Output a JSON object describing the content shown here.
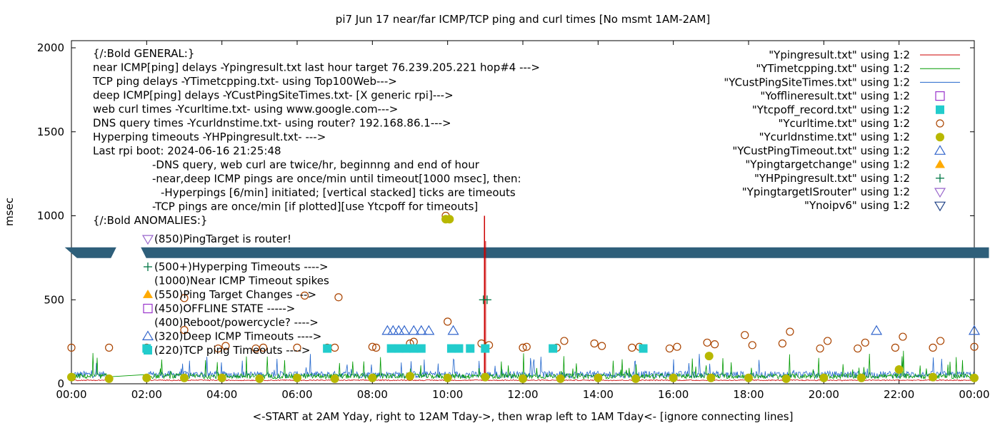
{
  "chart_data": {
    "type": "line",
    "title": "pi7 Jun 17  near/far ICMP/TCP ping and curl times [No msmt 1AM-2AM]",
    "xlabel": "<-START at 2AM Yday, right to 12AM Tday->, then wrap left to 1AM Tday<- [ignore connecting lines]",
    "ylabel": "msec",
    "xlim": [
      0,
      24
    ],
    "ylim": [
      0,
      2050
    ],
    "x_ticks": [
      "00:00",
      "02:00",
      "04:00",
      "06:00",
      "08:00",
      "10:00",
      "12:00",
      "14:00",
      "16:00",
      "18:00",
      "20:00",
      "22:00",
      "00:00"
    ],
    "y_ticks": [
      "0",
      "500",
      "1000",
      "1500",
      "2000"
    ],
    "y_tick_values": [
      0,
      500,
      1000,
      1500,
      2000
    ],
    "grid": false,
    "legend_position": "top-right",
    "legend": [
      {
        "label": "\"Ypingresult.txt\" using 1:2",
        "marker": "line",
        "color": "#cc0000"
      },
      {
        "label": "\"YTimetcpping.txt\" using 1:2",
        "marker": "line",
        "color": "#009900"
      },
      {
        "label": "\"YCustPingSiteTimes.txt\" using 1:2",
        "marker": "line",
        "color": "#2266cc"
      },
      {
        "label": "\"Yofflineresult.txt\" using 1:2",
        "marker": "open-square",
        "color": "#9933cc"
      },
      {
        "label": "\"Ytcpoff_record.txt\" using 1:2",
        "marker": "filled-square",
        "color": "#22cccc"
      },
      {
        "label": "\"Ycurltime.txt\" using 1:2",
        "marker": "open-circle",
        "color": "#aa4400"
      },
      {
        "label": "\"Ycurldnstime.txt\" using 1:2",
        "marker": "filled-circle",
        "color": "#b8b800"
      },
      {
        "label": "\"YCustPingTimeout.txt\" using 1:2",
        "marker": "open-triangle",
        "color": "#3366cc"
      },
      {
        "label": "\"Ypingtargetchange\" using 1:2",
        "marker": "filled-triangle",
        "color": "#ffaa00"
      },
      {
        "label": "\"YHPpingresult.txt\" using 1:2",
        "marker": "plus",
        "color": "#007744"
      },
      {
        "label": "\"YpingtargetISrouter\" using 1:2",
        "marker": "open-down-triangle",
        "color": "#9966cc"
      },
      {
        "label": "\"Ynoipv6\" using 1:2",
        "marker": "open-down-triangle",
        "color": "#224488"
      }
    ],
    "annotations": [
      {
        "text": "{/:Bold GENERAL:}",
        "indent": 0
      },
      {
        "text": "near ICMP[ping] delays -Ypingresult.txt last hour target 76.239.205.221 hop#4 --->",
        "indent": 0
      },
      {
        "text": "TCP ping delays -YTimetcpping.txt- using Top100Web--->",
        "indent": 0
      },
      {
        "text": "deep ICMP[ping] delays -YCustPingSiteTimes.txt- [X generic rpi]--->",
        "indent": 0
      },
      {
        "text": "web curl times -Ycurltime.txt- using www.google.com--->",
        "indent": 0
      },
      {
        "text": "DNS query times -Ycurldnstime.txt- using router? 192.168.86.1--->",
        "indent": 0
      },
      {
        "text": "Hyperping timeouts -YHPpingresult.txt- --->",
        "indent": 0
      },
      {
        "text": "Last rpi boot: 2024-06-16 21:25:48",
        "indent": 0
      },
      {
        "text": "-DNS query, web curl are twice/hr, beginnng and end of hour",
        "indent": 1
      },
      {
        "text": "-near,deep ICMP pings are once/min until timeout[1000 msec], then:",
        "indent": 1
      },
      {
        "text": "-Hyperpings [6/min] initiated; [vertical stacked] ticks are timeouts",
        "indent": 2
      },
      {
        "text": "-TCP pings are once/min [if plotted][use Ytcpoff for timeouts]",
        "indent": 1
      },
      {
        "text": "{/:Bold ANOMALIES:}",
        "indent": 0
      }
    ],
    "anomalies": [
      {
        "text": "(850)PingTarget is router!",
        "marker": "open-down-triangle",
        "color": "#9966cc"
      },
      {
        "text": "(500+)Hyperping Timeouts ---->",
        "marker": "plus",
        "color": "#007744"
      },
      {
        "text": "(1000)Near ICMP Timeout spikes",
        "marker": "none",
        "color": ""
      },
      {
        "text": "(550)Ping Target Changes --->",
        "marker": "filled-triangle",
        "color": "#ffaa00"
      },
      {
        "text": "(450)OFFLINE STATE ----->",
        "marker": "open-square",
        "color": "#9933cc"
      },
      {
        "text": "(400)Reboot/powercycle? ---->",
        "marker": "none",
        "color": ""
      },
      {
        "text": "(320)Deep ICMP Timeouts ---->",
        "marker": "open-triangle",
        "color": "#3366cc"
      },
      {
        "text": "(220)TCP ping Timeouts ---->",
        "marker": "filled-square",
        "color": "#22cccc"
      }
    ],
    "noipv6_band": {
      "y": 780,
      "color": "#2e5f7a"
    },
    "series": [
      {
        "name": "\"Ycurltime.txt\" using 1:2",
        "marker": "open-circle",
        "color": "#aa4400",
        "points": [
          [
            0,
            215
          ],
          [
            1,
            215
          ],
          [
            2,
            215
          ],
          [
            3,
            320
          ],
          [
            3,
            510
          ],
          [
            3.9,
            210
          ],
          [
            4.1,
            225
          ],
          [
            4.9,
            210
          ],
          [
            5.1,
            215
          ],
          [
            6,
            215
          ],
          [
            6.2,
            525
          ],
          [
            6.8,
            215
          ],
          [
            7,
            215
          ],
          [
            7.1,
            515
          ],
          [
            8,
            220
          ],
          [
            8.1,
            215
          ],
          [
            9,
            240
          ],
          [
            9.1,
            250
          ],
          [
            10,
            370
          ],
          [
            10.9,
            240
          ],
          [
            11.1,
            230
          ],
          [
            12,
            215
          ],
          [
            12.1,
            220
          ],
          [
            12.9,
            215
          ],
          [
            13.1,
            255
          ],
          [
            13.9,
            240
          ],
          [
            14.1,
            225
          ],
          [
            14.9,
            215
          ],
          [
            15.1,
            220
          ],
          [
            15.9,
            210
          ],
          [
            16.1,
            220
          ],
          [
            16.9,
            245
          ],
          [
            17.1,
            235
          ],
          [
            17.9,
            290
          ],
          [
            18.1,
            230
          ],
          [
            18.9,
            240
          ],
          [
            19.1,
            310
          ],
          [
            19.9,
            210
          ],
          [
            20.1,
            255
          ],
          [
            20.9,
            210
          ],
          [
            21.1,
            245
          ],
          [
            21.9,
            215
          ],
          [
            22.1,
            280
          ],
          [
            22.9,
            215
          ],
          [
            23.1,
            255
          ],
          [
            24,
            220
          ],
          [
            9.95,
            1000
          ]
        ]
      },
      {
        "name": "\"Ycurldnstime.txt\" using 1:2",
        "marker": "filled-circle",
        "color": "#b8b800",
        "points": [
          [
            0,
            40
          ],
          [
            1,
            30
          ],
          [
            2,
            35
          ],
          [
            3,
            35
          ],
          [
            4,
            35
          ],
          [
            5,
            30
          ],
          [
            6,
            35
          ],
          [
            7,
            30
          ],
          [
            8,
            35
          ],
          [
            9,
            45
          ],
          [
            10,
            35
          ],
          [
            11,
            40
          ],
          [
            12,
            30
          ],
          [
            13,
            30
          ],
          [
            14,
            35
          ],
          [
            15,
            30
          ],
          [
            16,
            35
          ],
          [
            16.95,
            165
          ],
          [
            17,
            35
          ],
          [
            18,
            35
          ],
          [
            19,
            30
          ],
          [
            20,
            35
          ],
          [
            21,
            35
          ],
          [
            22,
            85
          ],
          [
            22.9,
            40
          ],
          [
            24,
            35
          ],
          [
            9.95,
            980
          ],
          [
            10.05,
            980
          ]
        ]
      },
      {
        "name": "\"Ytcpoff_record.txt\" using 1:2",
        "marker": "filled-square",
        "color": "#22cccc",
        "points": [
          [
            2,
            210
          ],
          [
            6.8,
            210
          ],
          [
            8.5,
            210
          ],
          [
            8.7,
            210
          ],
          [
            8.9,
            210
          ],
          [
            9.1,
            210
          ],
          [
            9.3,
            210
          ],
          [
            10.1,
            210
          ],
          [
            10.3,
            210
          ],
          [
            10.6,
            210
          ],
          [
            11,
            210
          ],
          [
            12.8,
            210
          ],
          [
            15.2,
            210
          ]
        ]
      },
      {
        "name": "\"YCustPingTimeout.txt\" using 1:2",
        "marker": "open-triangle",
        "color": "#3366cc",
        "points": [
          [
            8.4,
            315
          ],
          [
            8.55,
            315
          ],
          [
            8.7,
            315
          ],
          [
            8.85,
            315
          ],
          [
            9.1,
            315
          ],
          [
            9.3,
            315
          ],
          [
            9.5,
            315
          ],
          [
            10.15,
            315
          ],
          [
            21.4,
            315
          ],
          [
            24,
            315
          ]
        ]
      },
      {
        "name": "\"YHPpingresult.txt\" using 1:2",
        "marker": "plus",
        "color": "#007744",
        "points": [
          [
            10.95,
            500
          ],
          [
            11.05,
            500
          ]
        ]
      }
    ],
    "spikes": [
      {
        "series": "\"Ypingresult.txt\" using 1:2",
        "x": 10.98,
        "y": 1000,
        "color": "#cc0000"
      }
    ]
  }
}
